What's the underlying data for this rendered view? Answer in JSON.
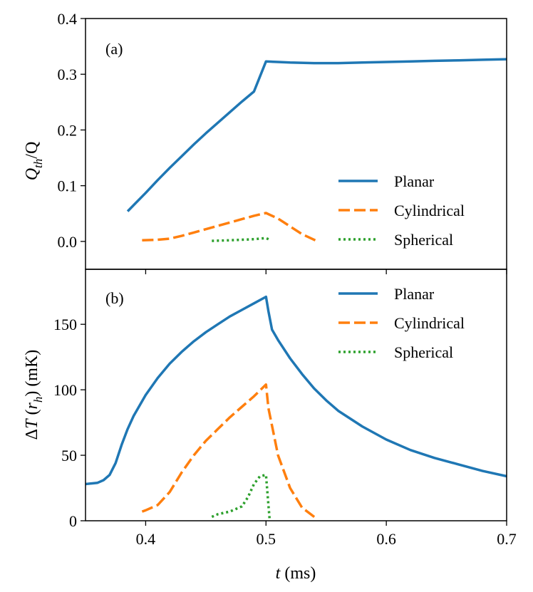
{
  "chart_data": [
    {
      "type": "line",
      "panel_label": "(a)",
      "xlabel": "",
      "ylabel": "Q_th/Q",
      "ylabel_main": "Q",
      "ylabel_sub": "th",
      "ylabel_rest": "/Q",
      "xlim": [
        0.35,
        0.7
      ],
      "ylim": [
        -0.05,
        0.4
      ],
      "yticks": [
        0.0,
        0.1,
        0.2,
        0.3,
        0.4
      ],
      "ytick_labels": [
        "0.0",
        "0.1",
        "0.2",
        "0.3",
        "0.4"
      ],
      "xticks": [
        0.4,
        0.5,
        0.6,
        0.7
      ],
      "legend_position": "lower-right",
      "series": [
        {
          "name": "Planar",
          "color": "#1f77b4",
          "style": "solid",
          "x": [
            0.385,
            0.39,
            0.4,
            0.41,
            0.42,
            0.43,
            0.44,
            0.45,
            0.46,
            0.47,
            0.48,
            0.49,
            0.5,
            0.51,
            0.52,
            0.54,
            0.56,
            0.58,
            0.6,
            0.62,
            0.64,
            0.66,
            0.68,
            0.7
          ],
          "y": [
            0.054,
            0.065,
            0.087,
            0.11,
            0.132,
            0.153,
            0.174,
            0.194,
            0.213,
            0.232,
            0.251,
            0.269,
            0.323,
            0.322,
            0.321,
            0.32,
            0.32,
            0.321,
            0.322,
            0.323,
            0.324,
            0.325,
            0.326,
            0.327
          ]
        },
        {
          "name": "Cylindrical",
          "color": "#ff7f0e",
          "style": "dashed",
          "x": [
            0.397,
            0.41,
            0.42,
            0.43,
            0.44,
            0.45,
            0.46,
            0.47,
            0.48,
            0.49,
            0.5,
            0.51,
            0.52,
            0.53,
            0.543
          ],
          "y": [
            0.002,
            0.003,
            0.005,
            0.01,
            0.016,
            0.022,
            0.028,
            0.034,
            0.04,
            0.046,
            0.051,
            0.041,
            0.027,
            0.013,
            0.0
          ]
        },
        {
          "name": "Spherical",
          "color": "#2ca02c",
          "style": "dotted",
          "x": [
            0.455,
            0.47,
            0.48,
            0.49,
            0.495,
            0.5,
            0.503
          ],
          "y": [
            0.001,
            0.002,
            0.003,
            0.004,
            0.005,
            0.006,
            0.003
          ]
        }
      ]
    },
    {
      "type": "line",
      "panel_label": "(b)",
      "xlabel": "t (ms)",
      "xlabel_main": "t",
      "xlabel_rest": " (ms)",
      "ylabel": "ΔT (r_h) (mK)",
      "ylabel_pre": "Δ",
      "ylabel_T": "T",
      "ylabel_open": " (",
      "ylabel_r": "r",
      "ylabel_sub": "h",
      "ylabel_rest": ") (mK)",
      "xlim": [
        0.35,
        0.7
      ],
      "ylim": [
        0,
        192
      ],
      "yticks": [
        0,
        50,
        100,
        150
      ],
      "ytick_labels": [
        "0",
        "50",
        "100",
        "150"
      ],
      "xticks": [
        0.4,
        0.5,
        0.6,
        0.7
      ],
      "xtick_labels": [
        "0.4",
        "0.5",
        "0.6",
        "0.7"
      ],
      "legend_position": "upper-right",
      "series": [
        {
          "name": "Planar",
          "color": "#1f77b4",
          "style": "solid",
          "x": [
            0.35,
            0.355,
            0.36,
            0.365,
            0.37,
            0.375,
            0.38,
            0.385,
            0.39,
            0.4,
            0.41,
            0.42,
            0.43,
            0.44,
            0.45,
            0.46,
            0.47,
            0.48,
            0.49,
            0.5,
            0.502,
            0.505,
            0.51,
            0.52,
            0.53,
            0.54,
            0.55,
            0.56,
            0.58,
            0.6,
            0.62,
            0.64,
            0.66,
            0.68,
            0.7
          ],
          "y": [
            28,
            28.5,
            29,
            31,
            35,
            44,
            58,
            70,
            80,
            96,
            109,
            120,
            129,
            137,
            144,
            150,
            156,
            161,
            166,
            171,
            160,
            146,
            138,
            124,
            112,
            101,
            92,
            84,
            72,
            62,
            54,
            48,
            43,
            38,
            34
          ]
        },
        {
          "name": "Cylindrical",
          "color": "#ff7f0e",
          "style": "dashed",
          "x": [
            0.397,
            0.4,
            0.41,
            0.42,
            0.43,
            0.44,
            0.45,
            0.46,
            0.47,
            0.48,
            0.49,
            0.5,
            0.502,
            0.51,
            0.52,
            0.53,
            0.543
          ],
          "y": [
            7,
            8,
            12,
            22,
            37,
            50,
            61,
            70,
            79,
            87,
            95,
            104,
            86,
            50,
            25,
            10,
            1
          ]
        },
        {
          "name": "Spherical",
          "color": "#2ca02c",
          "style": "dotted",
          "x": [
            0.455,
            0.46,
            0.47,
            0.48,
            0.485,
            0.49,
            0.495,
            0.5,
            0.502,
            0.503
          ],
          "y": [
            3,
            5,
            7,
            11,
            18,
            28,
            34,
            35,
            12,
            1
          ]
        }
      ]
    }
  ]
}
